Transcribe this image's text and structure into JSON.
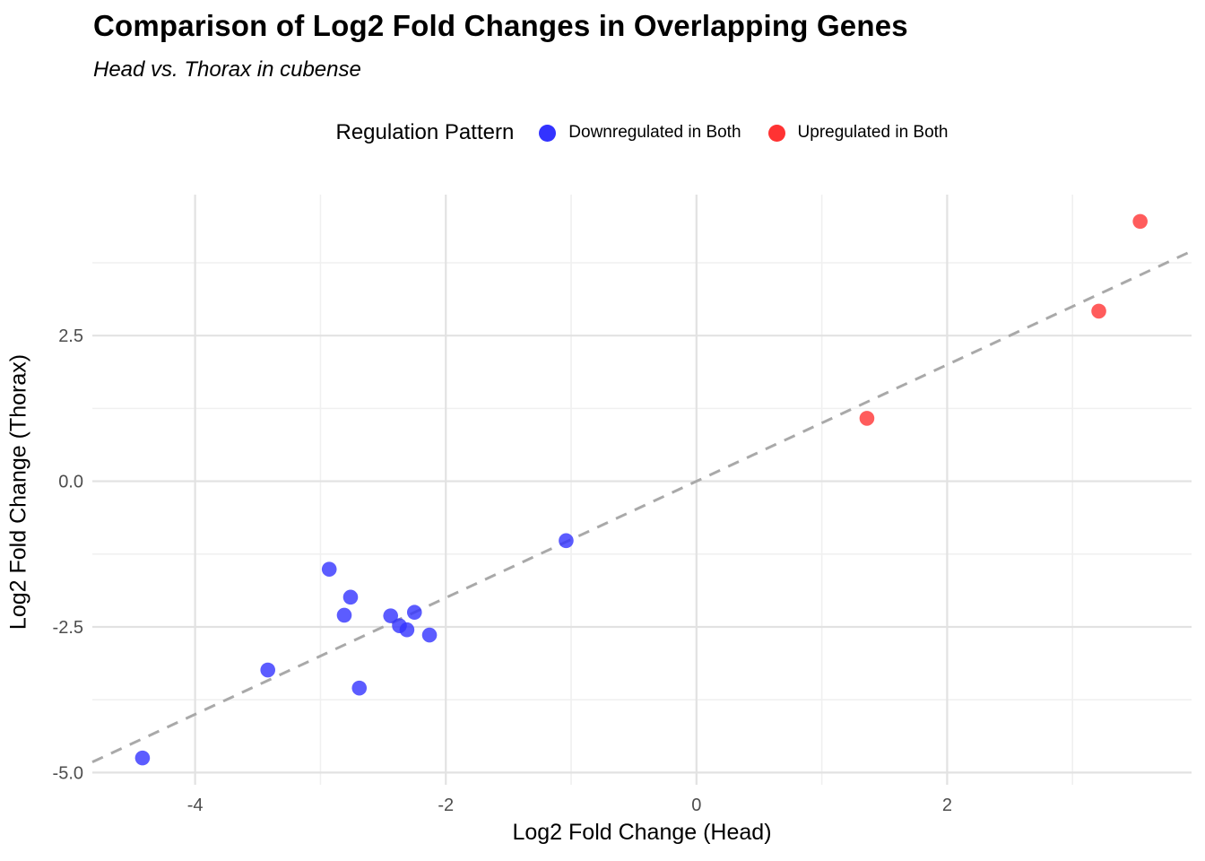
{
  "header": {
    "title": "Comparison of Log2 Fold Changes in Overlapping Genes",
    "subtitle": "Head vs. Thorax in cubense"
  },
  "legend": {
    "title": "Regulation Pattern",
    "items": [
      {
        "label": "Downregulated in Both",
        "color": "#3333FF"
      },
      {
        "label": "Upregulated in Both",
        "color": "#FF3333"
      }
    ]
  },
  "axes": {
    "x": {
      "title": "Log2 Fold Change (Head)"
    },
    "y": {
      "title": "Log2 Fold Change (Thorax)"
    }
  },
  "colors": {
    "grid_major": "#E2E2E2",
    "grid_minor": "#F0F0F0",
    "reference_line": "#A9A9A9",
    "tick_label": "#4D4D4D",
    "background": "#FFFFFF"
  },
  "chart_data": {
    "type": "scatter",
    "title": "Comparison of Log2 Fold Changes in Overlapping Genes",
    "subtitle": "Head vs. Thorax in cubense",
    "xlabel": "Log2 Fold Change (Head)",
    "ylabel": "Log2 Fold Change (Thorax)",
    "xlim": [
      -4.82,
      3.95
    ],
    "ylim": [
      -5.21,
      4.92
    ],
    "x_ticks": {
      "values": [
        -4,
        -2,
        0,
        2
      ],
      "labels": [
        "-4",
        "-2",
        "0",
        "2"
      ],
      "minor": [
        -3,
        -1,
        1,
        3
      ]
    },
    "y_ticks": {
      "values": [
        2.5,
        0,
        -2.5,
        -5
      ],
      "labels": [
        "2.5",
        "0.0",
        "-2.5",
        "-5.0"
      ],
      "minor": [
        3.75,
        1.25,
        -1.25,
        -3.75
      ]
    },
    "grid": true,
    "legend_position": "top",
    "marker": {
      "radius": 8.3,
      "opacity": 0.8
    },
    "reference_line": {
      "type": "identity",
      "slope": 1,
      "intercept": 0,
      "style": "dashed"
    },
    "series": [
      {
        "name": "Downregulated in Both",
        "color": "#3333FF",
        "points": [
          [
            -4.42,
            -4.75
          ],
          [
            -3.42,
            -3.24
          ],
          [
            -2.93,
            -1.51
          ],
          [
            -2.81,
            -2.3
          ],
          [
            -2.76,
            -1.99
          ],
          [
            -2.69,
            -3.55
          ],
          [
            -2.44,
            -2.31
          ],
          [
            -2.37,
            -2.48
          ],
          [
            -2.31,
            -2.55
          ],
          [
            -2.25,
            -2.25
          ],
          [
            -2.13,
            -2.64
          ],
          [
            -1.04,
            -1.02
          ]
        ]
      },
      {
        "name": "Upregulated in Both",
        "color": "#FF3333",
        "points": [
          [
            1.36,
            1.08
          ],
          [
            3.21,
            2.92
          ],
          [
            3.54,
            4.46
          ]
        ]
      }
    ]
  }
}
